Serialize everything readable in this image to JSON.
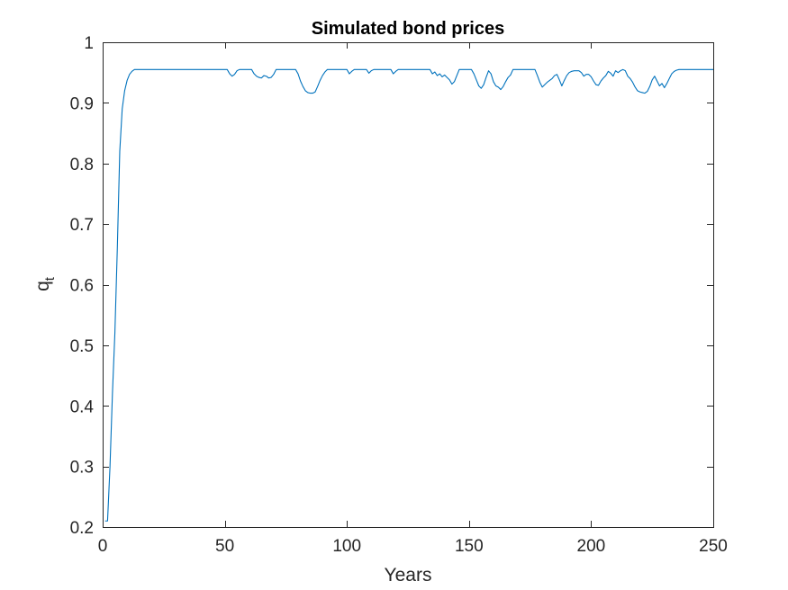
{
  "chart_data": {
    "type": "line",
    "title": "Simulated bond prices",
    "xlabel": "Years",
    "ylabel": "q",
    "ylabel_subscript": "t",
    "xlim": [
      0,
      250
    ],
    "ylim": [
      0.2,
      1.0
    ],
    "xticks": [
      0,
      50,
      100,
      150,
      200,
      250
    ],
    "yticks": [
      0.2,
      0.3,
      0.4,
      0.5,
      0.6,
      0.7,
      0.8,
      0.9,
      1.0
    ],
    "xtick_labels": [
      "0",
      "50",
      "100",
      "150",
      "200",
      "250"
    ],
    "ytick_labels": [
      "0.2",
      "0.3",
      "0.4",
      "0.5",
      "0.6",
      "0.7",
      "0.8",
      "0.9",
      "1"
    ],
    "grid": false,
    "legend": "none",
    "series": [
      {
        "color": "#0072BD",
        "points": [
          [
            1,
            0.21
          ],
          [
            2,
            0.21
          ],
          [
            3,
            0.3
          ],
          [
            4,
            0.42
          ],
          [
            5,
            0.52
          ],
          [
            6,
            0.66
          ],
          [
            7,
            0.82
          ],
          [
            8,
            0.89
          ],
          [
            9,
            0.92
          ],
          [
            10,
            0.937
          ],
          [
            11,
            0.947
          ],
          [
            12,
            0.952
          ],
          [
            13,
            0.955
          ],
          [
            14,
            0.955
          ],
          [
            20,
            0.955
          ],
          [
            30,
            0.955
          ],
          [
            40,
            0.955
          ],
          [
            50,
            0.955
          ],
          [
            51,
            0.955
          ],
          [
            52,
            0.948
          ],
          [
            53,
            0.944
          ],
          [
            54,
            0.947
          ],
          [
            55,
            0.953
          ],
          [
            56,
            0.955
          ],
          [
            60,
            0.955
          ],
          [
            61,
            0.955
          ],
          [
            62,
            0.948
          ],
          [
            63,
            0.944
          ],
          [
            64,
            0.942
          ],
          [
            65,
            0.941
          ],
          [
            66,
            0.945
          ],
          [
            67,
            0.944
          ],
          [
            68,
            0.941
          ],
          [
            69,
            0.942
          ],
          [
            70,
            0.947
          ],
          [
            71,
            0.955
          ],
          [
            75,
            0.955
          ],
          [
            79,
            0.955
          ],
          [
            80,
            0.948
          ],
          [
            81,
            0.936
          ],
          [
            82,
            0.927
          ],
          [
            83,
            0.92
          ],
          [
            84,
            0.917
          ],
          [
            85,
            0.916
          ],
          [
            86,
            0.916
          ],
          [
            87,
            0.918
          ],
          [
            88,
            0.927
          ],
          [
            89,
            0.937
          ],
          [
            90,
            0.945
          ],
          [
            91,
            0.951
          ],
          [
            92,
            0.955
          ],
          [
            96,
            0.955
          ],
          [
            99,
            0.955
          ],
          [
            100,
            0.955
          ],
          [
            101,
            0.948
          ],
          [
            102,
            0.952
          ],
          [
            103,
            0.955
          ],
          [
            107,
            0.955
          ],
          [
            108,
            0.955
          ],
          [
            109,
            0.949
          ],
          [
            110,
            0.953
          ],
          [
            111,
            0.955
          ],
          [
            117,
            0.955
          ],
          [
            118,
            0.955
          ],
          [
            119,
            0.948
          ],
          [
            120,
            0.952
          ],
          [
            121,
            0.955
          ],
          [
            130,
            0.955
          ],
          [
            134,
            0.955
          ],
          [
            135,
            0.948
          ],
          [
            136,
            0.951
          ],
          [
            137,
            0.945
          ],
          [
            138,
            0.948
          ],
          [
            139,
            0.943
          ],
          [
            140,
            0.946
          ],
          [
            141,
            0.942
          ],
          [
            142,
            0.938
          ],
          [
            143,
            0.931
          ],
          [
            144,
            0.935
          ],
          [
            145,
            0.945
          ],
          [
            146,
            0.955
          ],
          [
            150,
            0.955
          ],
          [
            151,
            0.955
          ],
          [
            152,
            0.948
          ],
          [
            153,
            0.938
          ],
          [
            154,
            0.928
          ],
          [
            155,
            0.924
          ],
          [
            156,
            0.93
          ],
          [
            157,
            0.942
          ],
          [
            158,
            0.953
          ],
          [
            159,
            0.948
          ],
          [
            160,
            0.935
          ],
          [
            161,
            0.928
          ],
          [
            162,
            0.926
          ],
          [
            163,
            0.922
          ],
          [
            164,
            0.927
          ],
          [
            165,
            0.935
          ],
          [
            166,
            0.942
          ],
          [
            167,
            0.946
          ],
          [
            168,
            0.955
          ],
          [
            172,
            0.955
          ],
          [
            176,
            0.955
          ],
          [
            177,
            0.955
          ],
          [
            178,
            0.945
          ],
          [
            179,
            0.934
          ],
          [
            180,
            0.926
          ],
          [
            181,
            0.93
          ],
          [
            182,
            0.934
          ],
          [
            183,
            0.937
          ],
          [
            184,
            0.94
          ],
          [
            185,
            0.945
          ],
          [
            186,
            0.947
          ],
          [
            187,
            0.938
          ],
          [
            188,
            0.928
          ],
          [
            189,
            0.937
          ],
          [
            190,
            0.945
          ],
          [
            191,
            0.95
          ],
          [
            192,
            0.952
          ],
          [
            193,
            0.953
          ],
          [
            194,
            0.953
          ],
          [
            195,
            0.953
          ],
          [
            196,
            0.95
          ],
          [
            197,
            0.944
          ],
          [
            198,
            0.947
          ],
          [
            199,
            0.947
          ],
          [
            200,
            0.943
          ],
          [
            201,
            0.936
          ],
          [
            202,
            0.93
          ],
          [
            203,
            0.929
          ],
          [
            204,
            0.936
          ],
          [
            205,
            0.941
          ],
          [
            206,
            0.945
          ],
          [
            207,
            0.952
          ],
          [
            208,
            0.949
          ],
          [
            209,
            0.944
          ],
          [
            210,
            0.953
          ],
          [
            211,
            0.95
          ],
          [
            212,
            0.953
          ],
          [
            213,
            0.955
          ],
          [
            214,
            0.953
          ],
          [
            215,
            0.944
          ],
          [
            216,
            0.94
          ],
          [
            217,
            0.934
          ],
          [
            218,
            0.926
          ],
          [
            219,
            0.92
          ],
          [
            220,
            0.918
          ],
          [
            221,
            0.917
          ],
          [
            222,
            0.916
          ],
          [
            223,
            0.919
          ],
          [
            224,
            0.927
          ],
          [
            225,
            0.938
          ],
          [
            226,
            0.944
          ],
          [
            227,
            0.936
          ],
          [
            228,
            0.928
          ],
          [
            229,
            0.932
          ],
          [
            230,
            0.925
          ],
          [
            231,
            0.932
          ],
          [
            232,
            0.94
          ],
          [
            233,
            0.948
          ],
          [
            234,
            0.952
          ],
          [
            235,
            0.954
          ],
          [
            236,
            0.955
          ],
          [
            240,
            0.955
          ],
          [
            250,
            0.955
          ]
        ]
      }
    ]
  }
}
